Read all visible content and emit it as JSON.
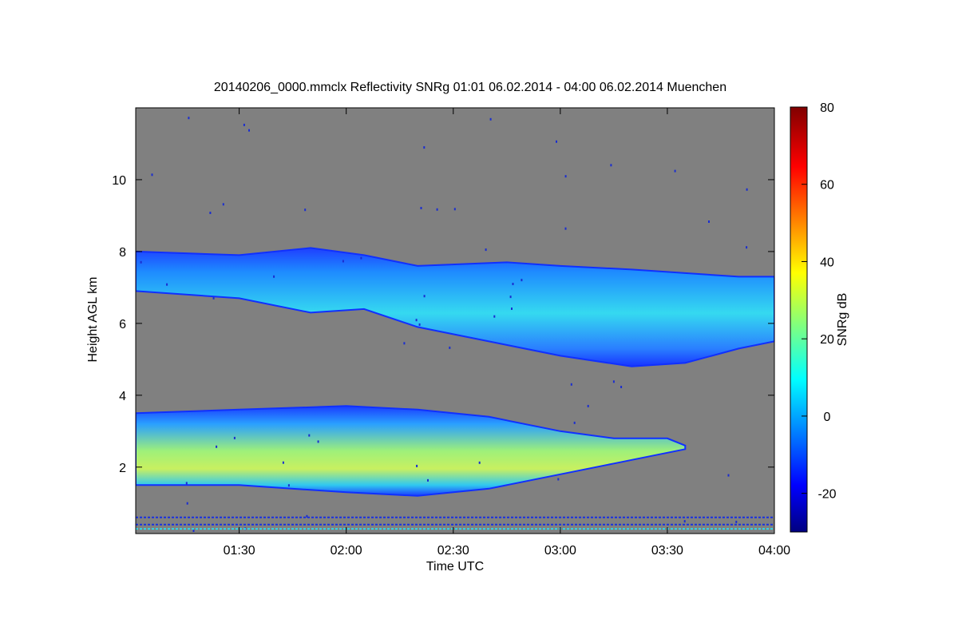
{
  "chart_data": {
    "type": "heatmap",
    "title": "20140206_0000.mmclx Reflectivity SNRg   01:01 06.02.2014 - 04:00 06.02.2014 Muenchen",
    "xlabel": "Time UTC",
    "ylabel": "Height AGL km",
    "xlim": [
      "01:01",
      "04:00"
    ],
    "ylim": [
      0.15,
      12
    ],
    "xticks": [
      "01:30",
      "02:00",
      "02:30",
      "03:00",
      "03:30",
      "04:00"
    ],
    "yticks": [
      "2",
      "4",
      "6",
      "8",
      "10"
    ],
    "background_color": "#808080",
    "colorbar": {
      "label": "SNRg dB",
      "range": [
        -30,
        80
      ],
      "ticks": [
        "-20",
        "0",
        "20",
        "40",
        "60",
        "80"
      ],
      "colormap": "jet"
    },
    "features": [
      {
        "name": "upper cloud layer",
        "time": [
          "01:01",
          "01:30",
          "01:50",
          "02:05",
          "02:20",
          "02:45",
          "03:00",
          "03:20",
          "03:35",
          "03:50",
          "04:00"
        ],
        "top_km": [
          8.0,
          7.9,
          8.1,
          7.9,
          7.6,
          7.7,
          7.6,
          7.5,
          7.4,
          7.3,
          7.3
        ],
        "base_km": [
          6.9,
          6.7,
          6.3,
          6.4,
          5.9,
          5.4,
          5.1,
          4.8,
          4.9,
          5.3,
          5.5
        ],
        "peak_snr_db": 15
      },
      {
        "name": "lower cloud layer",
        "time": [
          "01:01",
          "01:30",
          "02:00",
          "02:20",
          "02:40",
          "03:00",
          "03:15",
          "03:30",
          "03:35"
        ],
        "top_km": [
          3.5,
          3.6,
          3.7,
          3.6,
          3.4,
          3.0,
          2.8,
          2.8,
          2.6
        ],
        "base_km": [
          1.5,
          1.5,
          1.3,
          1.2,
          1.4,
          1.8,
          2.1,
          2.4,
          2.5
        ],
        "peak_snr_db": 35
      }
    ]
  }
}
